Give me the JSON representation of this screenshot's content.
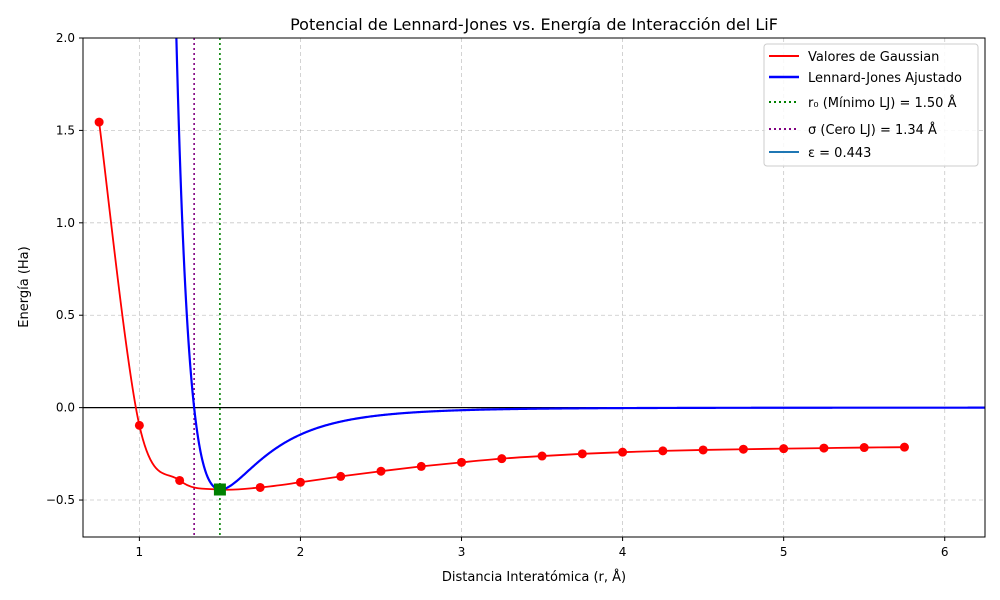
{
  "chart_data": {
    "type": "line",
    "title": "Potencial de Lennard-Jones vs. Energía de Interacción del LiF",
    "xlabel": "Distancia Interatómica (r, Å)",
    "ylabel": "Energía (Ha)",
    "xlim": [
      0.65,
      6.25
    ],
    "ylim": [
      -0.7,
      2.0
    ],
    "x_ticks": [
      1,
      2,
      3,
      4,
      5,
      6
    ],
    "x_tick_labels": [
      "1",
      "2",
      "3",
      "4",
      "5",
      "6"
    ],
    "y_ticks": [
      -0.5,
      0.0,
      0.5,
      1.0,
      1.5,
      2.0
    ],
    "y_tick_labels": [
      "−0.5",
      "0.0",
      "0.5",
      "1.0",
      "1.5",
      "2.0"
    ],
    "grid": true,
    "legend_position": "top-right",
    "colors": {
      "gaussian": "#ff0000",
      "lennard_jones": "#0000ff",
      "r0_line": "#008000",
      "sigma_line": "#800080",
      "epsilon_line": "#1f77b4",
      "zero_line": "#000000"
    },
    "series": [
      {
        "name": "Valores de Gaussian",
        "x": [
          0.75,
          1.0,
          1.25,
          1.5,
          1.75,
          2.0,
          2.25,
          2.5,
          2.75,
          3.0,
          3.25,
          3.5,
          3.75,
          4.0,
          4.25,
          4.5,
          4.75,
          5.0,
          5.25,
          5.5,
          5.75
        ],
        "y": [
          1.545,
          -0.096,
          -0.394,
          -0.443,
          -0.432,
          -0.404,
          -0.372,
          -0.344,
          -0.318,
          -0.296,
          -0.276,
          -0.262,
          -0.25,
          -0.241,
          -0.234,
          -0.229,
          -0.225,
          -0.222,
          -0.219,
          -0.216,
          -0.214
        ]
      },
      {
        "name": "Lennard-Jones Ajustado",
        "epsilon": 0.443,
        "sigma": 1.34
      }
    ],
    "vertical_lines": [
      {
        "label": "r₀ (Mínimo LJ) = 1.50 Å",
        "x": 1.5
      },
      {
        "label": "σ (Cero LJ) = 1.34 Å",
        "x": 1.34
      }
    ],
    "legend": [
      "Valores de Gaussian",
      "Lennard-Jones Ajustado",
      "r₀ (Mínimo LJ) = 1.50 Å",
      "σ (Cero LJ) = 1.34 Å",
      "ε = 0.443"
    ],
    "minimum_marker": {
      "x": 1.5,
      "y": -0.443
    }
  }
}
